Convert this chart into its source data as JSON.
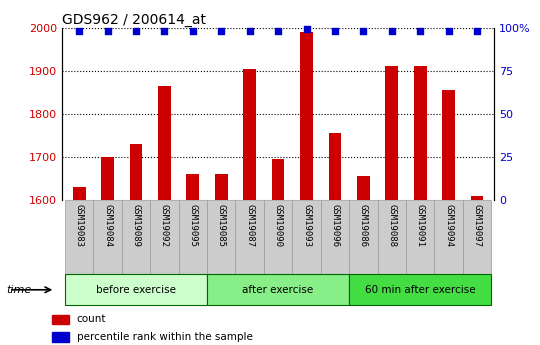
{
  "title": "GDS962 / 200614_at",
  "categories": [
    "GSM19083",
    "GSM19084",
    "GSM19089",
    "GSM19092",
    "GSM19095",
    "GSM19085",
    "GSM19087",
    "GSM19090",
    "GSM19093",
    "GSM19096",
    "GSM19086",
    "GSM19088",
    "GSM19091",
    "GSM19094",
    "GSM19097"
  ],
  "bar_values": [
    1630,
    1700,
    1730,
    1865,
    1660,
    1660,
    1905,
    1695,
    1990,
    1755,
    1655,
    1910,
    1910,
    1855,
    1610
  ],
  "percentile_values": [
    98,
    98,
    98,
    98,
    98,
    98,
    98,
    98,
    99,
    98,
    98,
    98,
    98,
    98,
    98
  ],
  "bar_color": "#cc0000",
  "dot_color": "#0000cc",
  "ylim_left": [
    1600,
    2000
  ],
  "ylim_right": [
    0,
    100
  ],
  "yticks_left": [
    1600,
    1700,
    1800,
    1900,
    2000
  ],
  "yticks_right": [
    0,
    25,
    50,
    75,
    100
  ],
  "ytick_labels_right": [
    "0",
    "25",
    "50",
    "75",
    "100%"
  ],
  "groups": [
    {
      "label": "before exercise",
      "start": 0,
      "end": 5,
      "color": "#ccffcc"
    },
    {
      "label": "after exercise",
      "start": 5,
      "end": 10,
      "color": "#88ee88"
    },
    {
      "label": "60 min after exercise",
      "start": 10,
      "end": 15,
      "color": "#44dd44"
    }
  ],
  "legend_items": [
    {
      "label": "count",
      "color": "#cc0000"
    },
    {
      "label": "percentile rank within the sample",
      "color": "#0000cc"
    }
  ],
  "xlabel_time": "time",
  "plot_bg": "#ffffff",
  "axis_label_color_left": "#cc0000",
  "axis_label_color_right": "#0000cc",
  "tick_label_bg": "#cccccc",
  "grid_style": "dotted",
  "grid_color": "#000000",
  "title_fontsize": 10,
  "bar_width": 0.45
}
